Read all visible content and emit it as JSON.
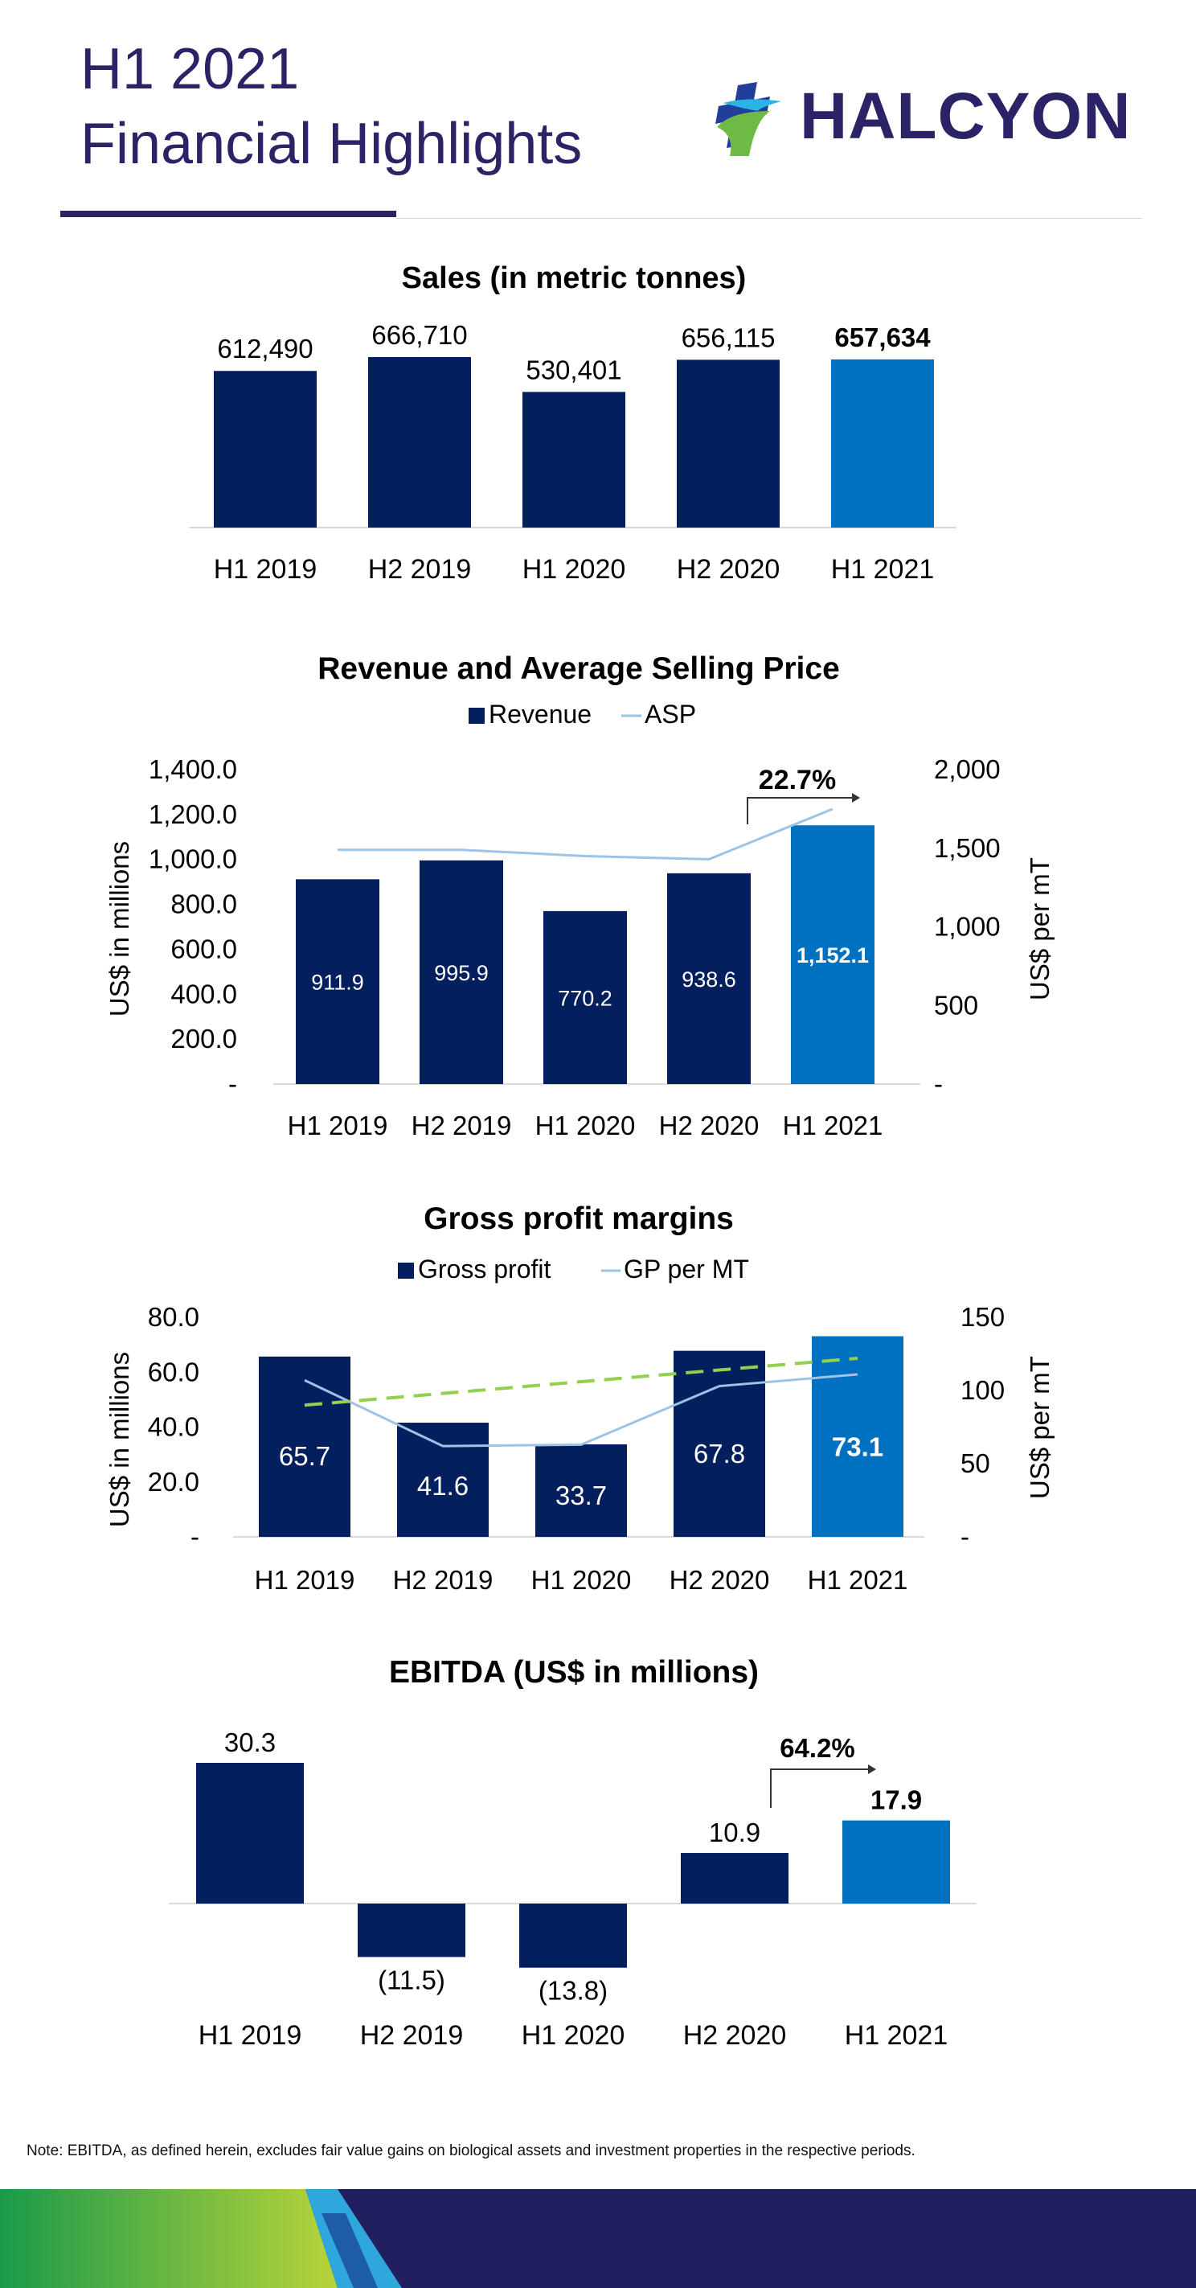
{
  "header": {
    "title_line1": "H1 2021",
    "title_line2": "Financial Highlights",
    "logo_text": "HALCYON",
    "logo_icon": "halcyon-h-mark-icon"
  },
  "colors": {
    "navy": "#041f5e",
    "highlight_blue": "#0070c0",
    "title_purple": "#2a2466",
    "asp_line": "#9dc3e6",
    "trend_green": "#92d050",
    "footer_navy": "#221f5e",
    "footer_green": "#3aa142"
  },
  "note": "Note: EBITDA, as defined herein, excludes fair value gains on biological assets and investment properties in the respective periods.",
  "chart_data": [
    {
      "id": "sales",
      "type": "bar",
      "title": "Sales (in metric tonnes)",
      "categories": [
        "H1 2019",
        "H2 2019",
        "H1 2020",
        "H2 2020",
        "H1 2021"
      ],
      "values": [
        612490,
        666710,
        530401,
        656115,
        657634
      ],
      "labels": [
        "612,490",
        "666,710",
        "530,401",
        "656,115",
        "657,634"
      ],
      "highlight_index": 4,
      "ylim": [
        0,
        700000
      ]
    },
    {
      "id": "revenue",
      "type": "bar",
      "title": "Revenue and Average Selling Price",
      "legend": [
        "Revenue",
        "ASP"
      ],
      "categories": [
        "H1 2019",
        "H2 2019",
        "H1 2020",
        "H2 2020",
        "H1 2021"
      ],
      "series": [
        {
          "name": "Revenue",
          "values": [
            911.9,
            995.9,
            770.2,
            938.6,
            1152.1
          ],
          "labels": [
            "911.9",
            "995.9",
            "770.2",
            "938.6",
            "1,152.1"
          ]
        },
        {
          "name": "ASP",
          "type": "line",
          "axis": "right",
          "values": [
            1490,
            1490,
            1450,
            1430,
            1750
          ]
        }
      ],
      "highlight_index": 4,
      "ylabel": "US$ in millions",
      "y2label": "US$ per mT",
      "ylim": [
        0,
        1400
      ],
      "y2lim": [
        0,
        2000
      ],
      "yticks": [
        "-",
        "200.0",
        "400.0",
        "600.0",
        "800.0",
        "1,000.0",
        "1,200.0",
        "1,400.0"
      ],
      "y2ticks": [
        "-",
        "500",
        "1,000",
        "1,500",
        "2,000"
      ],
      "growth_annotation": "22.7%"
    },
    {
      "id": "gross_profit",
      "type": "bar",
      "title": "Gross profit margins",
      "legend": [
        "Gross profit",
        "GP per MT"
      ],
      "categories": [
        "H1 2019",
        "H2 2019",
        "H1 2020",
        "H2 2020",
        "H1 2021"
      ],
      "series": [
        {
          "name": "Gross profit",
          "values": [
            65.7,
            41.6,
            33.7,
            67.8,
            73.1
          ],
          "labels": [
            "65.7",
            "41.6",
            "33.7",
            "67.8",
            "73.1"
          ]
        },
        {
          "name": "GP per MT",
          "type": "line",
          "axis": "right",
          "values": [
            107,
            62,
            63,
            103,
            111
          ]
        }
      ],
      "trendline": {
        "type": "linear",
        "start": 90,
        "end": 122,
        "axis": "right"
      },
      "highlight_index": 4,
      "ylabel": "US$ in millions",
      "y2label": "US$ per mT",
      "ylim": [
        0,
        80
      ],
      "y2lim": [
        0,
        150
      ],
      "yticks": [
        "-",
        "20.0",
        "40.0",
        "60.0",
        "80.0"
      ],
      "y2ticks": [
        "-",
        "50",
        "100",
        "150"
      ]
    },
    {
      "id": "ebitda",
      "type": "bar",
      "title": "EBITDA (US$ in millions)",
      "categories": [
        "H1 2019",
        "H2 2019",
        "H1 2020",
        "H2 2020",
        "H1 2021"
      ],
      "values": [
        30.3,
        -11.5,
        -13.8,
        10.9,
        17.9
      ],
      "labels": [
        "30.3",
        "(11.5)",
        "(13.8)",
        "10.9",
        "17.9"
      ],
      "highlight_index": 4,
      "growth_annotation": "64.2%"
    }
  ]
}
